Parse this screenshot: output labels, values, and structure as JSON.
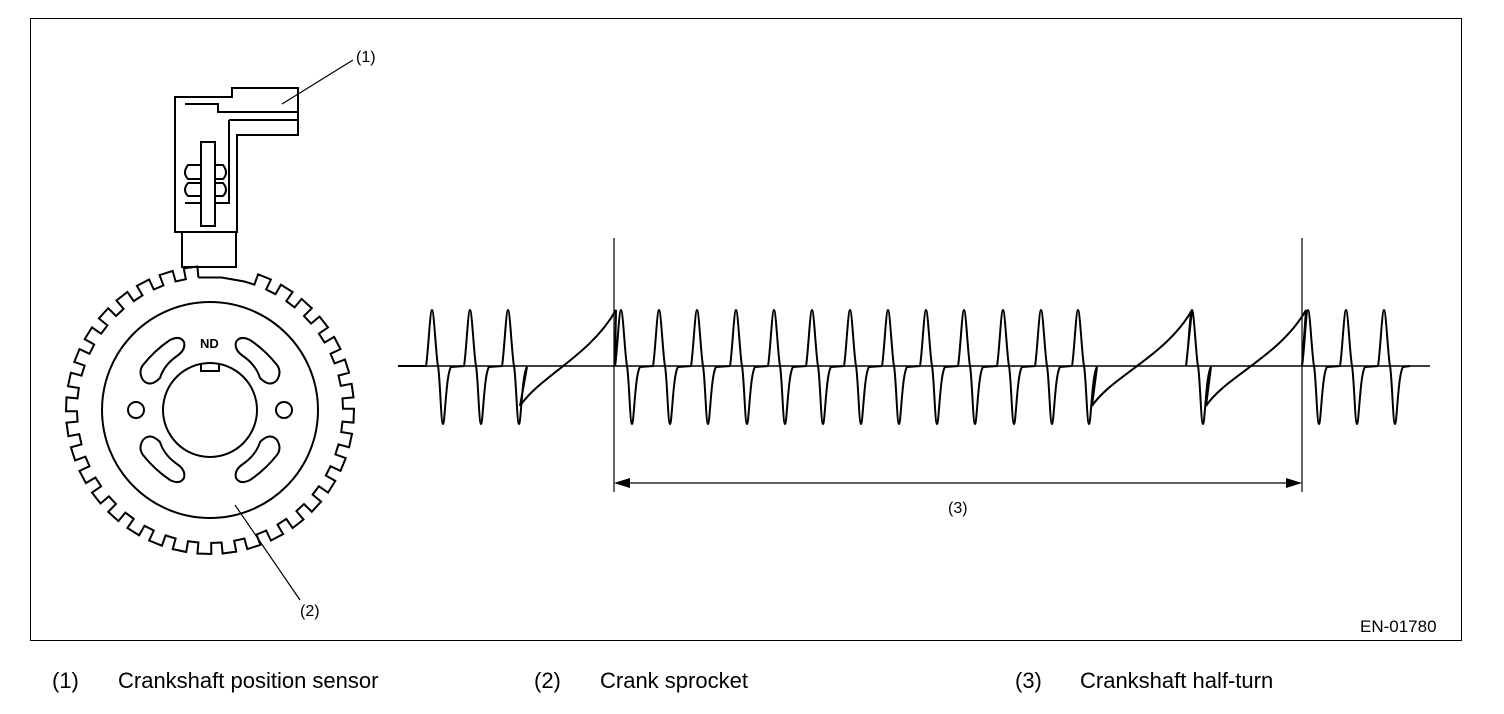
{
  "figure": {
    "code": "EN-01780",
    "sensor_marker": "ND",
    "callouts": {
      "c1": "(1)",
      "c2": "(2)",
      "c3": "(3)"
    }
  },
  "legend": [
    {
      "num": "(1)",
      "text": "Crankshaft position sensor"
    },
    {
      "num": "(2)",
      "text": "Crank sprocket"
    },
    {
      "num": "(3)",
      "text": "Crankshaft half-turn"
    }
  ]
}
